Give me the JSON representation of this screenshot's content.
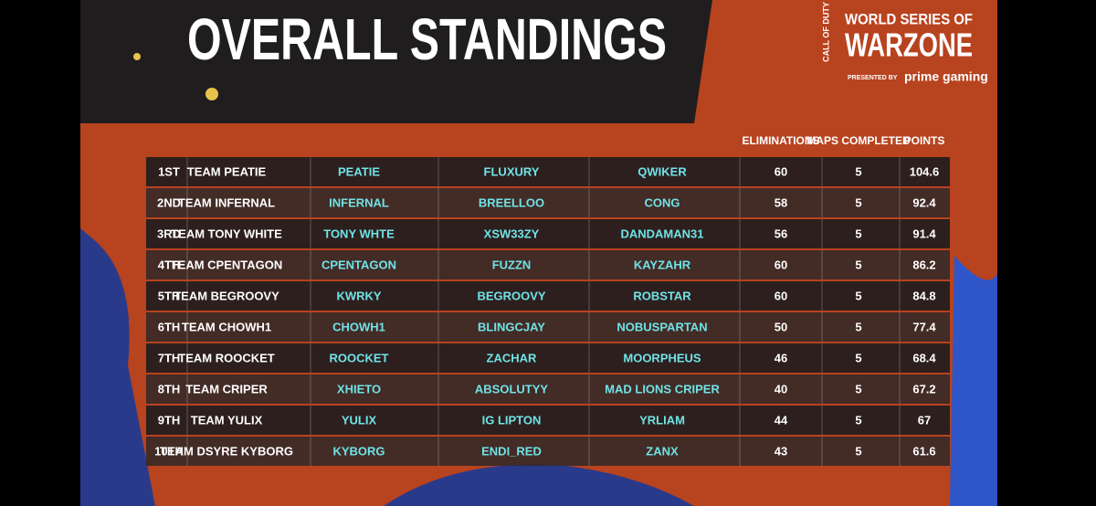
{
  "header": {
    "title": "OVERALL STANDINGS"
  },
  "logo": {
    "brand": "CALL OF DUTY",
    "series": "WORLD SERIES OF",
    "name": "WARZONE",
    "presented_by": "PRESENTED BY",
    "sponsor": "prime gaming"
  },
  "table": {
    "columns": [
      "ELIMINATIONS",
      "MAPS COMPLETED",
      "POINTS"
    ],
    "rows": [
      [
        "1ST",
        "TEAM PEATIE",
        "PEATIE",
        "FLUXURY",
        "QWIKER",
        60,
        5,
        104.6
      ],
      [
        "2ND",
        "TEAM INFERNAL",
        "INFERNAL",
        "BREELLOO",
        "CONG",
        58,
        5,
        92.4
      ],
      [
        "3RD",
        "TEAM TONY WHITE",
        "TONY WHTE",
        "XSW33ZY",
        "DANDAMAN31",
        56,
        5,
        91.4
      ],
      [
        "4TH",
        "TEAM CPENTAGON",
        "CPENTAGON",
        "FUZZN",
        "KAYZAHR",
        60,
        5,
        86.2
      ],
      [
        "5TH",
        "TEAM BEGROOVY",
        "KWRKY",
        "BEGROOVY",
        "ROBSTAR",
        60,
        5,
        84.8
      ],
      [
        "6TH",
        "TEAM CHOWH1",
        "CHOWH1",
        "BLINGCJAY",
        "NOBUSPARTAN",
        50,
        5,
        77.4
      ],
      [
        "7TH",
        "TEAM ROOCKET",
        "ROOCKET",
        "ZACHAR",
        "MOORPHEUS",
        46,
        5,
        68.4
      ],
      [
        "8TH",
        "TEAM CRIPER",
        "XHIETO",
        "ABSOLUTYY",
        "MAD LIONS CRIPER",
        40,
        5,
        67.2
      ],
      [
        "9TH",
        "TEAM YULIX",
        "YULIX",
        "IG LIPTON",
        "YRLIAM",
        44,
        5,
        67
      ],
      [
        "10TH",
        "TEAM DSYRE KYBORG",
        "KYBORG",
        "ENDI_RED",
        "ZANX",
        43,
        5,
        61.6
      ]
    ]
  }
}
